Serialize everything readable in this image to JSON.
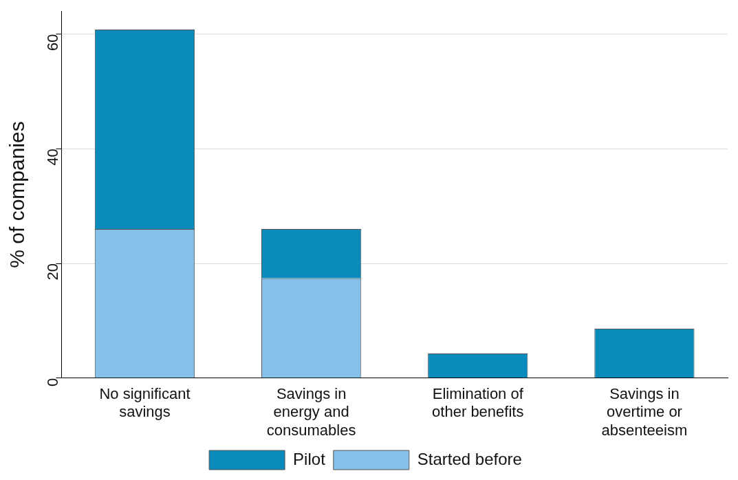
{
  "chart_data": {
    "type": "bar",
    "stacked": true,
    "ylabel": "% of companies",
    "categories": [
      "No significant savings",
      "Savings in energy and consumables",
      "Elimination of other benefits",
      "Savings in overtime or absenteeism"
    ],
    "series": [
      {
        "name": "Started before",
        "color": "#86c0e8",
        "values": [
          26.0,
          17.4,
          0,
          0
        ]
      },
      {
        "name": "Pilot",
        "color": "#0a8bbb",
        "values": [
          34.8,
          8.6,
          4.3,
          8.6
        ]
      }
    ],
    "ylim": [
      0,
      64
    ],
    "yticks": [
      0,
      20,
      40,
      60
    ],
    "grid": "y",
    "legend": "bottom"
  }
}
